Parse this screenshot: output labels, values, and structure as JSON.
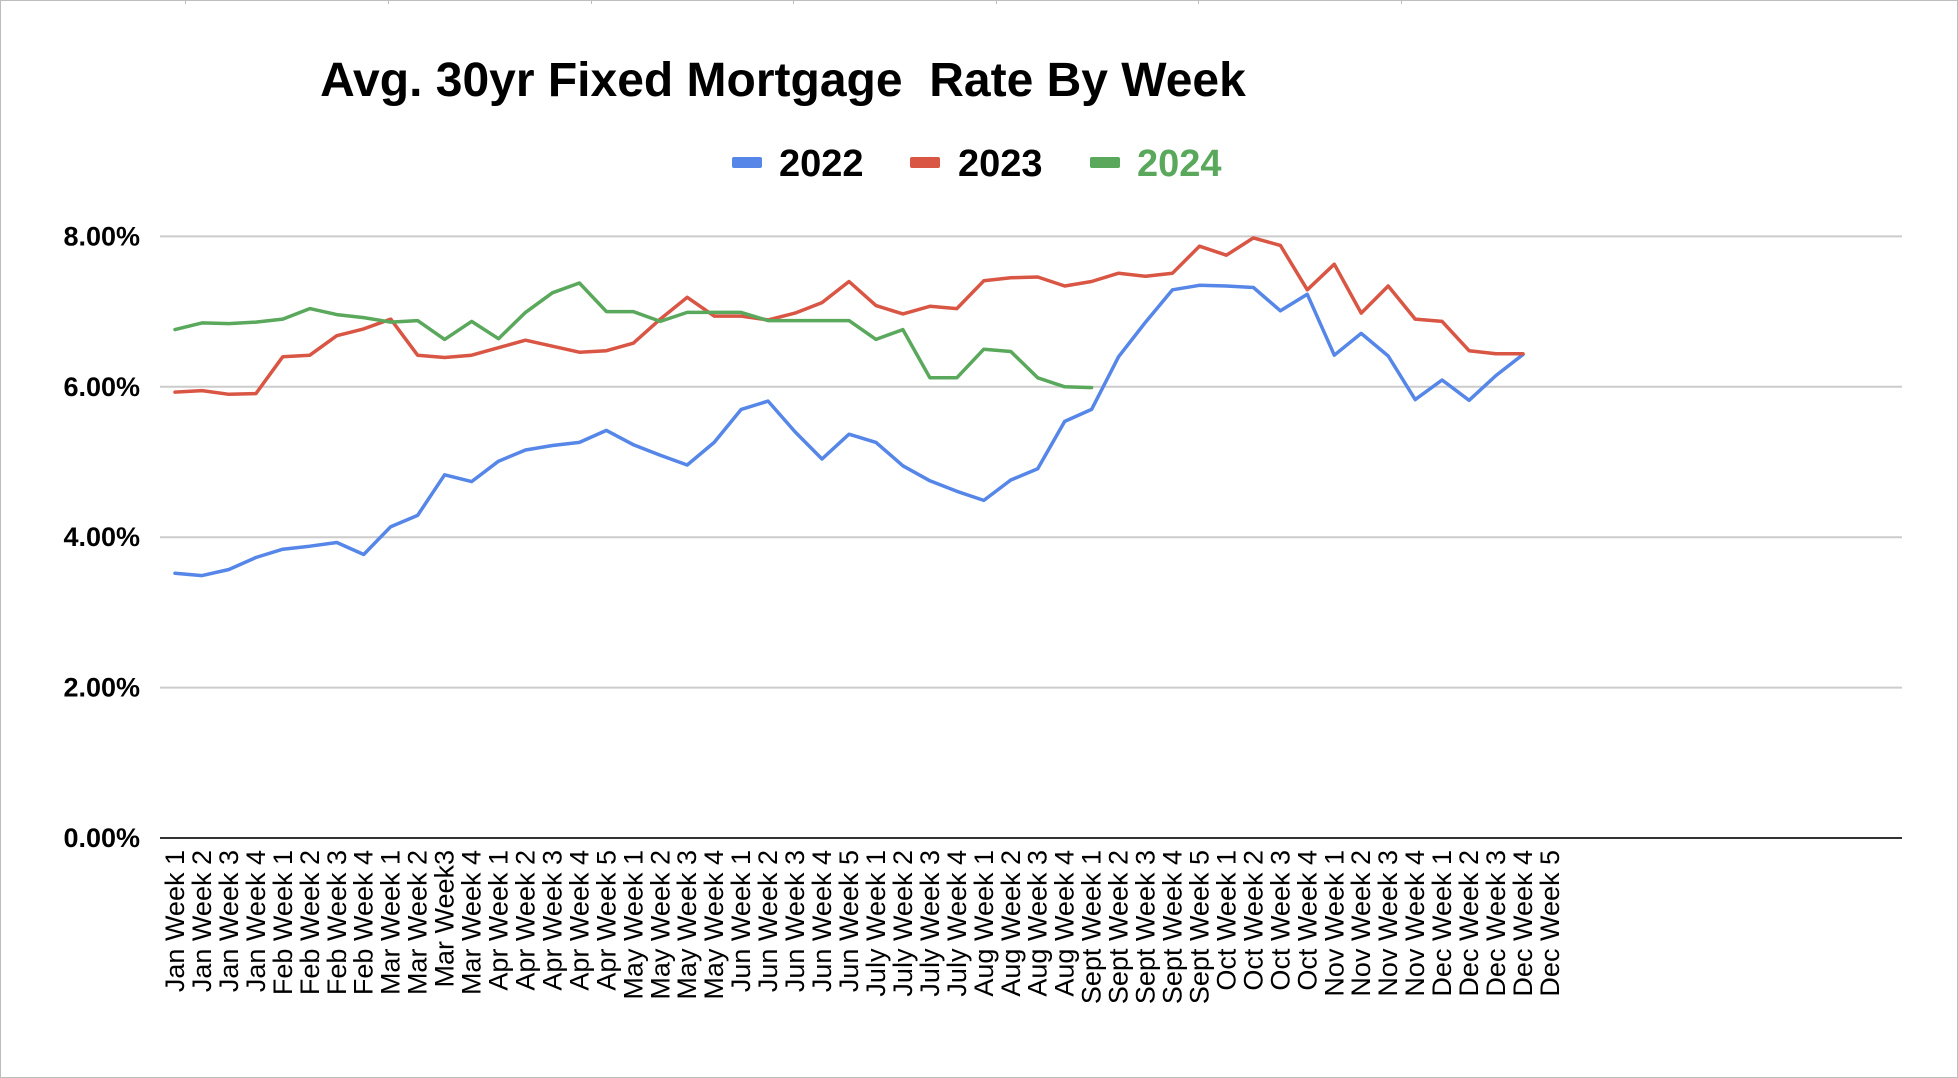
{
  "chart_data": {
    "type": "line",
    "title": "Avg. 30yr Fixed Mortgage  Rate By Week",
    "xlabel": "",
    "ylabel": "",
    "ylim": [
      0,
      8
    ],
    "y_ticks": [
      "0.00%",
      "2.00%",
      "4.00%",
      "6.00%",
      "8.00%"
    ],
    "grid": true,
    "legend_position": "top",
    "categories": [
      "Jan Week 1",
      "Jan Week 2",
      "Jan Week 3",
      "Jan Week 4",
      "Feb Week 1",
      "Feb Week 2",
      "Feb Week 3",
      "Feb Week 4",
      "Mar Week 1",
      "Mar Week 2",
      "Mar Week3",
      "Mar Week 4",
      "Apr Week 1",
      "Apr Week 2",
      "Apr Week 3",
      "Apr Week 4",
      "Apr Week 5",
      "May Week 1",
      "May Week 2",
      "May Week 3",
      "May Week 4",
      "Jun Week 1",
      "Jun Week 2",
      "Jun Week 3",
      "Jun Week 4",
      "Jun Week 5",
      "July Week 1",
      "July Week 2",
      "July Week 3",
      "July Week 4",
      "Aug Week 1",
      "Aug Week 2",
      "Aug Week 3",
      "Aug Week 4",
      "Sept Week 1",
      "Sept Week 2",
      "Sept Week 3",
      "Sept Week 4",
      "Sept Week 5",
      "Oct Week 1",
      "Oct Week 2",
      "Oct Week 3",
      "Oct Week 4",
      "Nov Week 1",
      "Nov Week 2",
      "Nov Week 3",
      "Nov Week 4",
      "Dec Week 1",
      "Dec Week 2",
      "Dec Week 3",
      "Dec Week 4",
      "Dec Week 5"
    ],
    "series": [
      {
        "name": "2022",
        "color": "#5586e8",
        "values": [
          3.52,
          3.49,
          3.57,
          3.73,
          3.84,
          3.88,
          3.93,
          3.77,
          4.14,
          4.29,
          4.83,
          4.74,
          5.01,
          5.16,
          5.22,
          5.26,
          5.42,
          5.23,
          5.09,
          4.96,
          5.26,
          5.7,
          5.81,
          5.4,
          5.04,
          5.37,
          5.26,
          4.95,
          4.75,
          4.61,
          4.49,
          4.76,
          4.91,
          5.54,
          5.7,
          6.4,
          6.86,
          7.29,
          7.35,
          7.34,
          7.32,
          7.01,
          7.23,
          6.42,
          6.71,
          6.41,
          5.83,
          6.09,
          5.82,
          6.15,
          6.43,
          null
        ]
      },
      {
        "name": "2023",
        "color": "#d95544",
        "values": [
          5.93,
          5.95,
          5.9,
          5.91,
          6.4,
          6.42,
          6.68,
          6.77,
          6.9,
          6.42,
          6.39,
          6.42,
          6.52,
          6.62,
          6.54,
          6.46,
          6.48,
          6.58,
          6.9,
          7.19,
          6.94,
          6.94,
          6.89,
          6.98,
          7.12,
          7.4,
          7.08,
          6.97,
          7.07,
          7.04,
          7.41,
          7.45,
          7.46,
          7.34,
          7.4,
          7.51,
          7.47,
          7.51,
          7.87,
          7.75,
          7.98,
          7.88,
          7.29,
          7.63,
          6.98,
          7.34,
          6.9,
          6.87,
          6.48,
          6.44,
          6.44,
          null
        ]
      },
      {
        "name": "2024",
        "color": "#5aa85c",
        "values": [
          6.76,
          6.85,
          6.84,
          6.86,
          6.9,
          7.04,
          6.96,
          6.92,
          6.86,
          6.88,
          6.63,
          6.87,
          6.64,
          6.99,
          7.25,
          7.38,
          7.0,
          7.0,
          6.87,
          6.99,
          6.99,
          6.99,
          6.88,
          6.88,
          6.88,
          6.88,
          6.63,
          6.76,
          6.12,
          6.12,
          6.5,
          6.47,
          6.12,
          6.0,
          5.99,
          null,
          null,
          null,
          null,
          null,
          null,
          null,
          null,
          null,
          null,
          null,
          null,
          null,
          null,
          null,
          null,
          null
        ]
      }
    ]
  }
}
